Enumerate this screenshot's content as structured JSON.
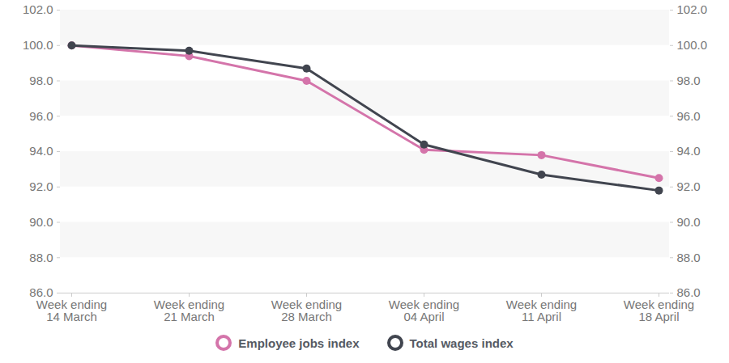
{
  "chart_data": {
    "type": "line",
    "categories": [
      "Week ending\n14 March",
      "Week ending\n21 March",
      "Week ending\n28 March",
      "Week ending\n04 April",
      "Week ending\n11 April",
      "Week ending\n18 April"
    ],
    "series": [
      {
        "name": "Employee jobs index",
        "color": "#d474aa",
        "marker": "circle",
        "values": [
          100.0,
          99.4,
          98.0,
          94.1,
          93.8,
          92.5
        ]
      },
      {
        "name": "Total wages index",
        "color": "#41454f",
        "marker": "circle",
        "values": [
          100.0,
          99.7,
          98.7,
          94.4,
          92.7,
          91.8
        ]
      }
    ],
    "ylim": [
      86,
      102
    ],
    "yticks": [
      {
        "value": 86,
        "label": "86.0"
      },
      {
        "value": 88,
        "label": "88.0"
      },
      {
        "value": 90,
        "label": "90.0"
      },
      {
        "value": 92,
        "label": "92.0"
      },
      {
        "value": 94,
        "label": "94.0"
      },
      {
        "value": 96,
        "label": "96.0"
      },
      {
        "value": 98,
        "label": "98.0"
      },
      {
        "value": 100,
        "label": "100.0"
      },
      {
        "value": 102,
        "label": "102.0"
      }
    ],
    "grid": true,
    "legend": "bottom"
  }
}
